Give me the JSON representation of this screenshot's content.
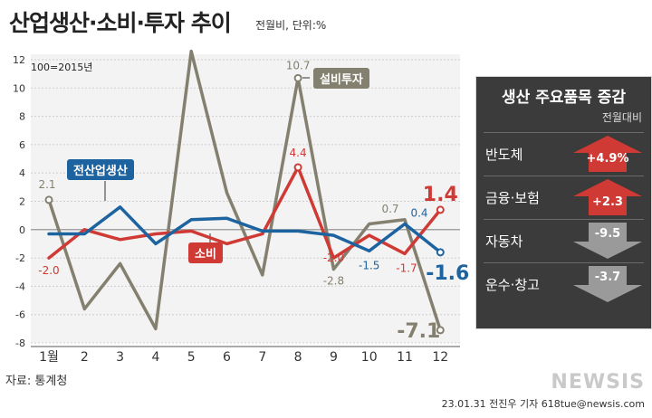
{
  "title": "산업생산·소비·투자 추이",
  "subtitle": "전월비, 단위:%",
  "base_note": "100=2015년",
  "source": "자료: 통계청",
  "credit": "23.01.31 전진우 기자 618tue@newsis.com",
  "watermark": "NEWSIS",
  "colors": {
    "total": "#1d63a0",
    "consumption": "#cf3a35",
    "equipment": "#84806f",
    "panel_bg": "#3b3b3b",
    "up": "#cf3a35",
    "down": "#9a9a9a"
  },
  "chart_data": {
    "type": "line",
    "title": "산업생산·소비·투자 추이",
    "ylabel": "전월비, 단위:%",
    "categories": [
      "1월",
      "2",
      "3",
      "4",
      "5",
      "6",
      "7",
      "8",
      "9",
      "10",
      "11",
      "12"
    ],
    "ylim": [
      -8,
      12
    ],
    "yticks": [
      "12",
      "10",
      "8",
      "6",
      "4",
      "2",
      "0",
      "-2",
      "-4",
      "-6",
      "-8"
    ],
    "grid": true,
    "series": [
      {
        "name": "전산업생산",
        "key": "total",
        "values": [
          -0.3,
          -0.3,
          1.6,
          -1.0,
          0.7,
          0.8,
          -0.1,
          -0.1,
          -0.4,
          -1.5,
          0.4,
          -1.6
        ]
      },
      {
        "name": "소비",
        "key": "consumption",
        "values": [
          -2.0,
          0.0,
          -0.7,
          -0.3,
          -0.1,
          -1.0,
          -0.3,
          4.4,
          -2.0,
          -0.4,
          -1.7,
          1.4
        ]
      },
      {
        "name": "설비투자",
        "key": "equipment",
        "values": [
          2.1,
          -5.6,
          -2.4,
          -7.0,
          12.6,
          2.6,
          -3.2,
          10.7,
          -2.8,
          0.4,
          0.7,
          -7.1
        ]
      }
    ],
    "data_labels": {
      "total": [
        "-1.5",
        "0.4",
        "-1.6"
      ],
      "consumption": [
        "-2.0",
        "4.4",
        "-2.0",
        "-1.7",
        "1.4"
      ],
      "equipment": [
        "2.1",
        "10.7",
        "-2.8",
        "0.7",
        "-7.1"
      ]
    }
  },
  "panel": {
    "title": "생산 주요품목 증감",
    "subtitle": "전월대비",
    "items": [
      {
        "name": "반도체",
        "value": "+4.9%",
        "value_num": 4.9,
        "direction": "up"
      },
      {
        "name": "금융·보험",
        "value": "+2.3",
        "value_num": 2.3,
        "direction": "up"
      },
      {
        "name": "자동차",
        "value": "-9.5",
        "value_num": -9.5,
        "direction": "down"
      },
      {
        "name": "운수·창고",
        "value": "-3.7",
        "value_num": -3.7,
        "direction": "down"
      }
    ]
  }
}
